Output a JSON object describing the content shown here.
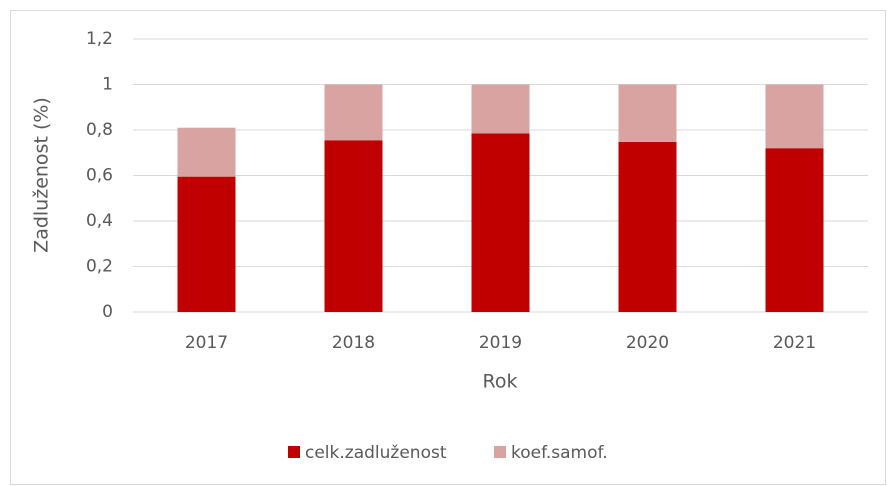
{
  "chart_data": {
    "type": "stacked_bar",
    "x_label": "Rok",
    "y_label": "Zadluženost (%)",
    "categories": [
      "2017",
      "2018",
      "2019",
      "2020",
      "2021"
    ],
    "series": [
      {
        "name": "celk.zadluženost",
        "color": "#c00000",
        "values": [
          0.595,
          0.755,
          0.785,
          0.748,
          0.72
        ]
      },
      {
        "name": "koef.samof.",
        "color": "#d9a3a2",
        "values": [
          0.215,
          0.245,
          0.215,
          0.252,
          0.28
        ]
      }
    ],
    "ylim": [
      0,
      1.2
    ],
    "yticks": [
      0,
      {
        "value": 0.2,
        "label": "0,2"
      },
      {
        "value": 0.4,
        "label": "0,4"
      },
      {
        "value": 0.6,
        "label": "0,6"
      },
      {
        "value": 0.8,
        "label": "0,8"
      },
      1,
      {
        "value": 1.2,
        "label": "1,2"
      }
    ],
    "grid": true,
    "legend": "bottom"
  }
}
